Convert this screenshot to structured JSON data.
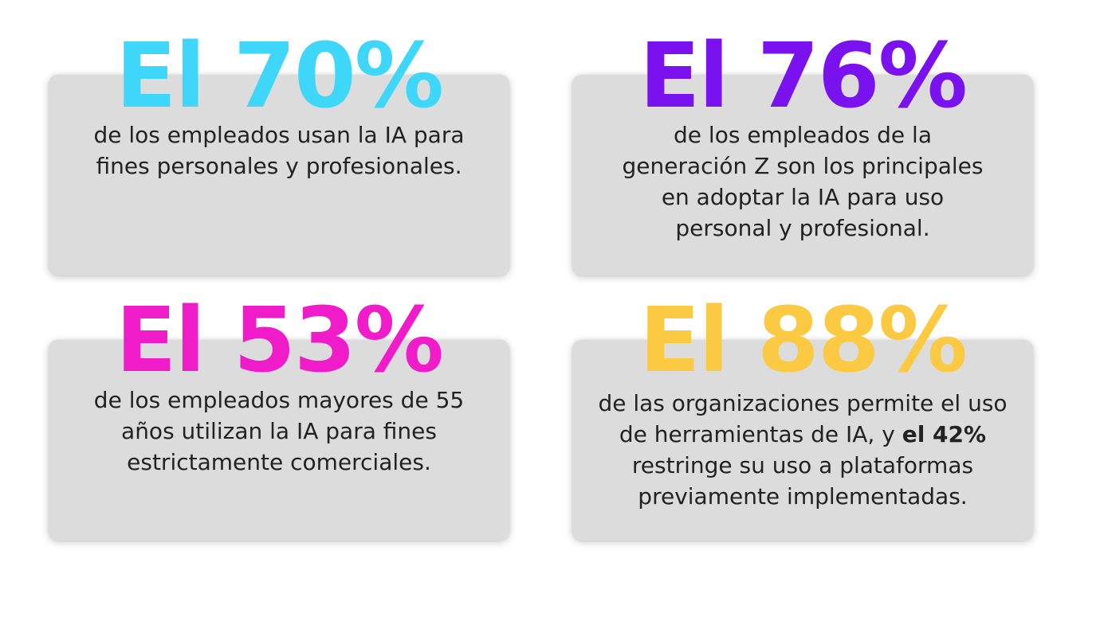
{
  "colors": {
    "cyan": "#3ed7f9",
    "purple": "#7a12f0",
    "magenta": "#f01cc9",
    "yellow": "#fbc942",
    "card_bg": "#dcdcdc",
    "text": "#222222"
  },
  "stats": [
    {
      "headline": "El 70%",
      "color": "#3ed7f9",
      "lines": [
        "de los empleados usan la IA para",
        "fines personales y profesionales."
      ]
    },
    {
      "headline": "El 76%",
      "color": "#7a12f0",
      "lines": [
        "de los empleados de la",
        "generación Z son los principales",
        "en adoptar la IA para uso",
        "personal y profesional."
      ]
    },
    {
      "headline": "El 53%",
      "color": "#f01cc9",
      "lines": [
        "de los empleados mayores de 55",
        "años utilizan la IA para fines",
        "estrictamente comerciales."
      ]
    },
    {
      "headline": "El 88%",
      "color": "#fbc942",
      "line_1": "de las organizaciones permite el uso",
      "line_2_text": "de herramientas de IA, y ",
      "line_2_bold": "el 42%",
      "line_3": "restringe su uso a plataformas",
      "line_4": "previamente implementadas."
    }
  ]
}
